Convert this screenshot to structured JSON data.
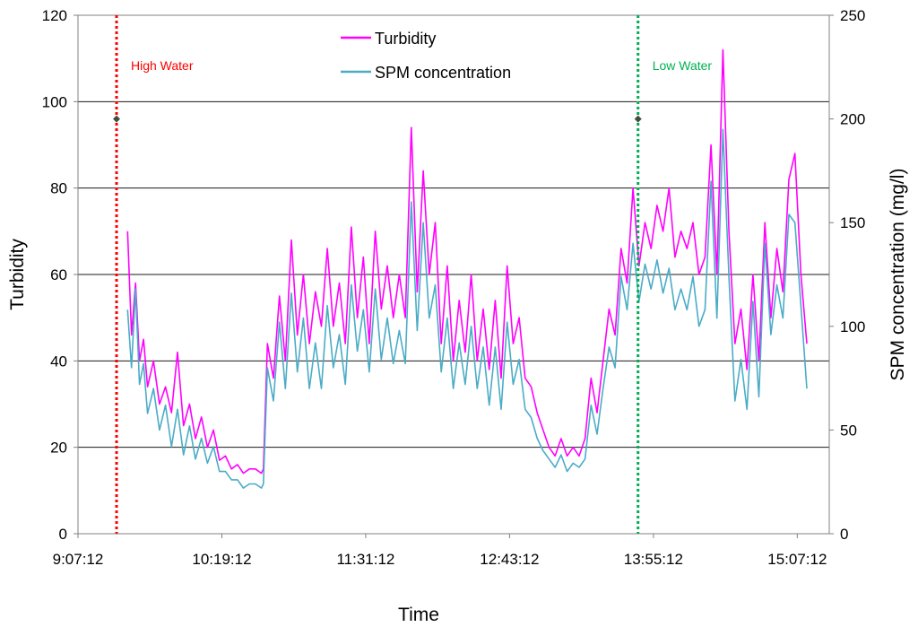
{
  "chart_data": {
    "type": "line",
    "title": "",
    "xlabel": "Time",
    "ylabel": "Turbidity",
    "y2label": "SPM concentration  (mg/l)",
    "xlim_minutes": [
      547.2,
      923.2
    ],
    "ylim": [
      0,
      120
    ],
    "y2lim": [
      0,
      250
    ],
    "x_tick_labels": [
      "9:07:12",
      "10:19:12",
      "11:31:12",
      "12:43:12",
      "13:55:12",
      "15:07:12"
    ],
    "y_tick_labels": [
      "0",
      "20",
      "40",
      "60",
      "80",
      "100",
      "120"
    ],
    "y2_tick_labels": [
      "0",
      "50",
      "100",
      "150",
      "200",
      "250"
    ],
    "grid": true,
    "legend_position": "top-center",
    "colors": {
      "turbidity": "#ff00ff",
      "spm": "#4bacc6",
      "high_water": "#ff0000",
      "low_water": "#00b050",
      "marker": "#3f4f3f"
    },
    "annotations": [
      {
        "label": "High Water",
        "time": "9:26",
        "minutes": 566.5,
        "color": "#ff0000"
      },
      {
        "label": "Low Water",
        "time": "13:47",
        "minutes": 827.5,
        "color": "#00b050"
      }
    ],
    "markers": [
      {
        "minutes": 566.5,
        "value": 96
      },
      {
        "minutes": 827.5,
        "value": 96
      }
    ],
    "series": [
      {
        "name": "Turbidity",
        "axis": "left",
        "color": "#ff00ff",
        "x": [
          572,
          574,
          576,
          578,
          580,
          582,
          585,
          588,
          591,
          594,
          597,
          600,
          603,
          606,
          609,
          612,
          615,
          618,
          621,
          624,
          627,
          630,
          633,
          636,
          639,
          640,
          642,
          645,
          648,
          651,
          654,
          657,
          660,
          663,
          666,
          669,
          672,
          675,
          678,
          681,
          684,
          687,
          690,
          693,
          696,
          699,
          702,
          705,
          708,
          711,
          714,
          717,
          720,
          723,
          726,
          729,
          732,
          735,
          738,
          741,
          744,
          747,
          750,
          753,
          756,
          759,
          762,
          765,
          768,
          771,
          774,
          777,
          780,
          783,
          786,
          789,
          792,
          795,
          798,
          801,
          804,
          807,
          810,
          813,
          816,
          819,
          822,
          825,
          828,
          831,
          834,
          837,
          840,
          843,
          846,
          849,
          852,
          855,
          858,
          861,
          864,
          867,
          870,
          873,
          876,
          879,
          882,
          885,
          888,
          891,
          894,
          897,
          900,
          903,
          906,
          909,
          912
        ],
        "values": [
          70,
          46,
          58,
          40,
          45,
          34,
          40,
          30,
          34,
          28,
          42,
          25,
          30,
          22,
          27,
          20,
          24,
          17,
          18,
          15,
          16,
          14,
          15,
          15,
          14,
          15,
          44,
          36,
          55,
          40,
          68,
          46,
          60,
          44,
          56,
          48,
          66,
          48,
          58,
          44,
          71,
          50,
          64,
          44,
          70,
          52,
          62,
          50,
          60,
          50,
          94,
          56,
          84,
          60,
          72,
          44,
          62,
          40,
          54,
          42,
          60,
          40,
          52,
          38,
          54,
          36,
          62,
          44,
          50,
          36,
          34,
          28,
          24,
          20,
          18,
          22,
          18,
          20,
          18,
          22,
          36,
          28,
          40,
          52,
          46,
          66,
          58,
          80,
          62,
          72,
          66,
          76,
          70,
          80,
          64,
          70,
          66,
          72,
          60,
          64,
          90,
          60,
          112,
          70,
          44,
          52,
          38,
          60,
          40,
          72,
          50,
          66,
          56,
          82,
          88,
          60,
          44
        ]
      },
      {
        "name": "SPM concentration",
        "axis": "right",
        "color": "#4bacc6",
        "x": [
          572,
          574,
          576,
          578,
          580,
          582,
          585,
          588,
          591,
          594,
          597,
          600,
          603,
          606,
          609,
          612,
          615,
          618,
          621,
          624,
          627,
          630,
          633,
          636,
          639,
          640,
          642,
          645,
          648,
          651,
          654,
          657,
          660,
          663,
          666,
          669,
          672,
          675,
          678,
          681,
          684,
          687,
          690,
          693,
          696,
          699,
          702,
          705,
          708,
          711,
          714,
          717,
          720,
          723,
          726,
          729,
          732,
          735,
          738,
          741,
          744,
          747,
          750,
          753,
          756,
          759,
          762,
          765,
          768,
          771,
          774,
          777,
          780,
          783,
          786,
          789,
          792,
          795,
          798,
          801,
          804,
          807,
          810,
          813,
          816,
          819,
          822,
          825,
          828,
          831,
          834,
          837,
          840,
          843,
          846,
          849,
          852,
          855,
          858,
          861,
          864,
          867,
          870,
          873,
          876,
          879,
          882,
          885,
          888,
          891,
          894,
          897,
          900,
          903,
          906,
          909,
          912
        ],
        "values": [
          108,
          80,
          118,
          72,
          82,
          58,
          70,
          50,
          62,
          42,
          60,
          38,
          52,
          36,
          46,
          34,
          42,
          30,
          30,
          26,
          26,
          22,
          24,
          24,
          22,
          24,
          80,
          64,
          102,
          70,
          116,
          78,
          104,
          70,
          92,
          70,
          110,
          80,
          96,
          72,
          120,
          88,
          108,
          78,
          118,
          84,
          104,
          82,
          98,
          82,
          160,
          98,
          150,
          104,
          120,
          78,
          104,
          70,
          92,
          72,
          100,
          70,
          90,
          62,
          90,
          60,
          102,
          72,
          84,
          60,
          56,
          46,
          40,
          36,
          32,
          38,
          30,
          34,
          32,
          36,
          62,
          48,
          70,
          90,
          80,
          124,
          108,
          140,
          112,
          130,
          118,
          132,
          116,
          128,
          108,
          118,
          108,
          124,
          100,
          108,
          170,
          104,
          195,
          124,
          64,
          84,
          60,
          112,
          66,
          140,
          96,
          120,
          104,
          154,
          150,
          110,
          70
        ]
      }
    ]
  }
}
